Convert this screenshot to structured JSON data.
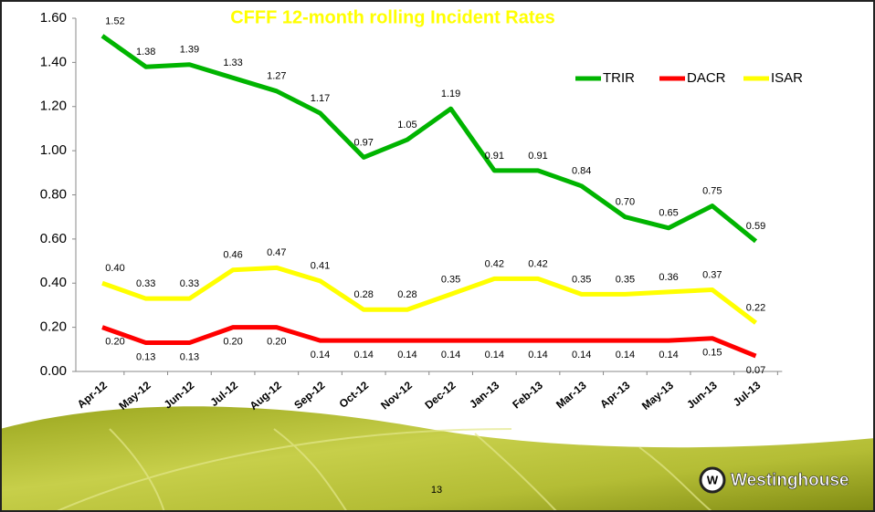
{
  "chart_data": {
    "type": "line",
    "title": "CFFF 12-month rolling Incident Rates",
    "categories": [
      "Apr-12",
      "May-12",
      "Jun-12",
      "Jul-12",
      "Aug-12",
      "Sep-12",
      "Oct-12",
      "Nov-12",
      "Dec-12",
      "Jan-13",
      "Feb-13",
      "Mar-13",
      "Apr-13",
      "May-13",
      "Jun-13",
      "Jul-13"
    ],
    "series": [
      {
        "name": "TRIR",
        "color": "#00b400",
        "values": [
          1.52,
          1.38,
          1.39,
          1.33,
          1.27,
          1.17,
          0.97,
          1.05,
          1.19,
          0.91,
          0.91,
          0.84,
          0.7,
          0.65,
          0.75,
          0.59
        ],
        "value_labels": [
          "1.52",
          "1.38",
          "1.39",
          "1.33",
          "1.27",
          "1.17",
          "0.97",
          "1.05",
          "1.19",
          "0.91",
          "0.91",
          "0.84",
          "0.70",
          "0.65",
          "0.75",
          "0.59"
        ]
      },
      {
        "name": "DACR",
        "color": "#ff0000",
        "values": [
          0.2,
          0.13,
          0.13,
          0.2,
          0.2,
          0.14,
          0.14,
          0.14,
          0.14,
          0.14,
          0.14,
          0.14,
          0.14,
          0.14,
          0.15,
          0.07
        ],
        "value_labels": [
          "0.20",
          "0.13",
          "0.13",
          "0.20",
          "0.20",
          "0.14",
          "0.14",
          "0.14",
          "0.14",
          "0.14",
          "0.14",
          "0.14",
          "0.14",
          "0.14",
          "0.15",
          "0.07"
        ]
      },
      {
        "name": "ISAR",
        "color": "#ffff00",
        "values": [
          0.4,
          0.33,
          0.33,
          0.46,
          0.47,
          0.41,
          0.28,
          0.28,
          0.35,
          0.42,
          0.42,
          0.35,
          0.35,
          0.36,
          0.37,
          0.22
        ],
        "value_labels": [
          "0.40",
          "0.33",
          "0.33",
          "0.46",
          "0.47",
          "0.41",
          "0.28",
          "0.28",
          "0.35",
          "0.42",
          "0.42",
          "0.35",
          "0.35",
          "0.36",
          "0.37",
          "0.22"
        ]
      }
    ],
    "ylim": [
      0,
      1.6
    ],
    "yticks": [
      {
        "value": 0,
        "label": "0.00"
      },
      {
        "value": 0.2,
        "label": "0.20"
      },
      {
        "value": 0.4,
        "label": "0.40"
      },
      {
        "value": 0.6,
        "label": "0.60"
      },
      {
        "value": 0.8,
        "label": "0.80"
      },
      {
        "value": 1.0,
        "label": "1.00"
      },
      {
        "value": 1.2,
        "label": "1.20"
      },
      {
        "value": 1.4,
        "label": "1.40"
      },
      {
        "value": 1.6,
        "label": "1.60"
      }
    ],
    "grid": false,
    "legend": "upper right"
  },
  "slide": {
    "page_number": "13",
    "logo": "Westinghouse"
  }
}
